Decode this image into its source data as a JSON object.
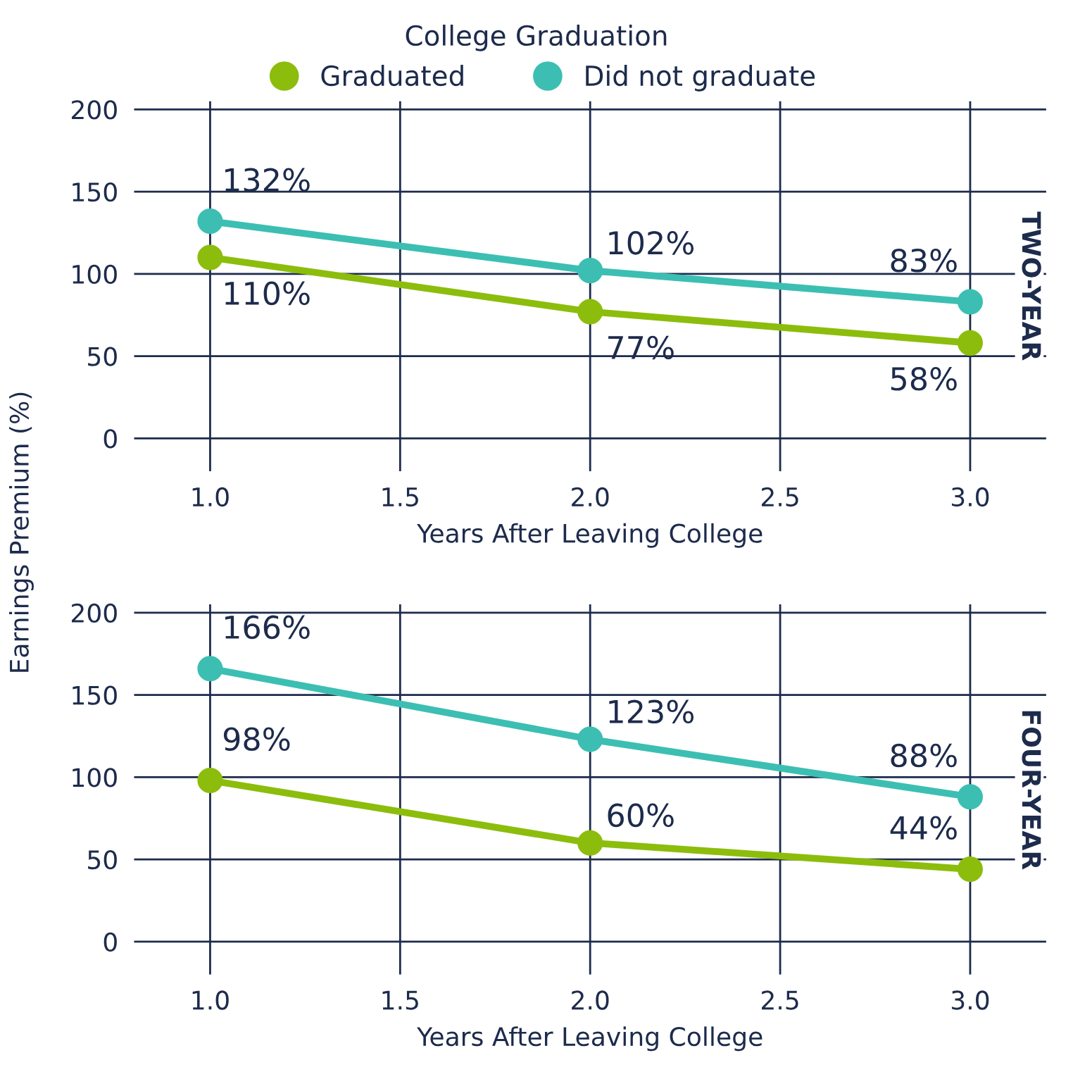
{
  "chart_data": [
    {
      "type": "line",
      "title": "TWO-YEAR",
      "xlabel": "Years After Leaving College",
      "ylabel": "Earnings Premium (%)",
      "legend_title": "College Graduation",
      "legend": "top",
      "x": [
        1.0,
        2.0,
        3.0
      ],
      "xlim": [
        0.8,
        3.2
      ],
      "xticks": [
        {
          "value": 1.0,
          "label": "1.0"
        },
        {
          "value": 1.5,
          "label": "1.5"
        },
        {
          "value": 2.0,
          "label": "2.0"
        },
        {
          "value": 2.5,
          "label": "2.5"
        },
        {
          "value": 3.0,
          "label": "3.0"
        }
      ],
      "ylim": [
        -20,
        205
      ],
      "yticks": [
        0,
        50,
        100,
        150,
        200
      ],
      "grid": true,
      "marker": "circle",
      "line_style": "solid",
      "series": [
        {
          "name": "Graduated",
          "color": "#8cbd0c",
          "values": [
            110,
            77,
            58
          ],
          "value_labels": [
            "110%",
            "77%",
            "58%"
          ]
        },
        {
          "name": "Did not graduate",
          "color": "#3cbfb2",
          "values": [
            132,
            102,
            83
          ],
          "value_labels": [
            "132%",
            "102%",
            "83%"
          ]
        }
      ]
    },
    {
      "type": "line",
      "title": "FOUR-YEAR",
      "xlabel": "Years After Leaving College",
      "x": [
        1.0,
        2.0,
        3.0
      ],
      "xlim": [
        0.8,
        3.2
      ],
      "xticks": [
        {
          "value": 1.0,
          "label": "1.0"
        },
        {
          "value": 1.5,
          "label": "1.5"
        },
        {
          "value": 2.0,
          "label": "2.0"
        },
        {
          "value": 2.5,
          "label": "2.5"
        },
        {
          "value": 3.0,
          "label": "3.0"
        }
      ],
      "ylim": [
        -20,
        205
      ],
      "yticks": [
        0,
        50,
        100,
        150,
        200
      ],
      "grid": true,
      "marker": "circle",
      "line_style": "solid",
      "series": [
        {
          "color": "#8cbd0c",
          "values": [
            98,
            60,
            44
          ],
          "value_labels": [
            "98%",
            "60%",
            "44%"
          ]
        },
        {
          "color": "#3cbfb2",
          "values": [
            166,
            123,
            88
          ],
          "value_labels": [
            "166%",
            "123%",
            "88%"
          ]
        }
      ]
    }
  ]
}
